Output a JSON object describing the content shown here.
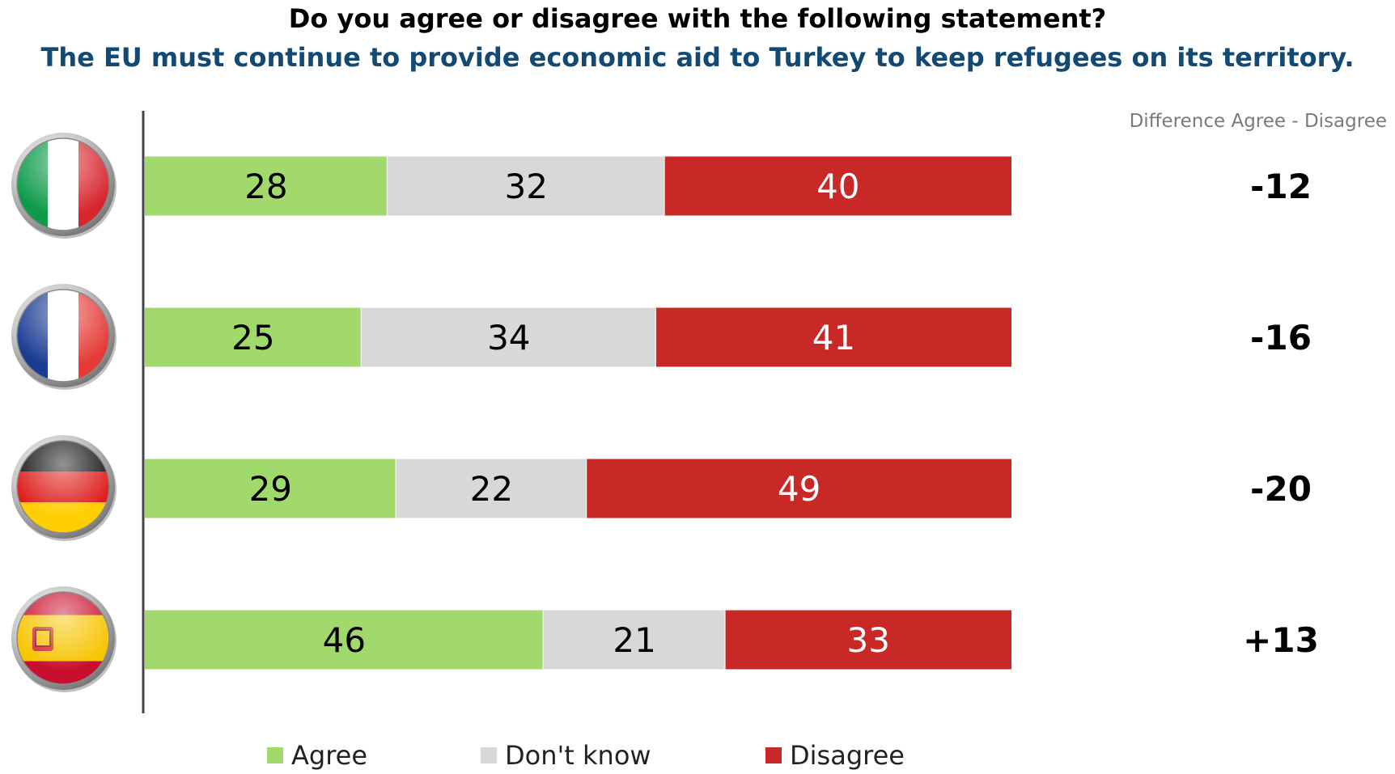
{
  "question": "Do you agree or disagree with the following statement?",
  "statement": "The EU must continue to provide economic aid to Turkey to keep refugees on its territory.",
  "difference_header": "Difference Agree - Disagree",
  "colors": {
    "agree": "#a2d96c",
    "dont_know": "#d9d8d8",
    "disagree": "#c82826",
    "statement": "#134a73"
  },
  "countries": [
    {
      "flag": "italy-flag-icon"
    },
    {
      "flag": "france-flag-icon"
    },
    {
      "flag": "germany-flag-icon"
    },
    {
      "flag": "spain-flag-icon"
    }
  ],
  "chart_data": {
    "type": "bar",
    "stacked": true,
    "orientation": "horizontal",
    "categories": [
      "Italy",
      "France",
      "Germany",
      "Spain"
    ],
    "series": [
      {
        "name": "Agree",
        "values": [
          28,
          25,
          29,
          46
        ]
      },
      {
        "name": "Don't know",
        "values": [
          32,
          34,
          22,
          21
        ]
      },
      {
        "name": "Disagree",
        "values": [
          40,
          41,
          49,
          33
        ]
      }
    ],
    "difference": [
      "-12",
      "-16",
      "-20",
      "+13"
    ],
    "xlim": [
      0,
      100
    ],
    "legend": "bottom",
    "grid": false
  }
}
